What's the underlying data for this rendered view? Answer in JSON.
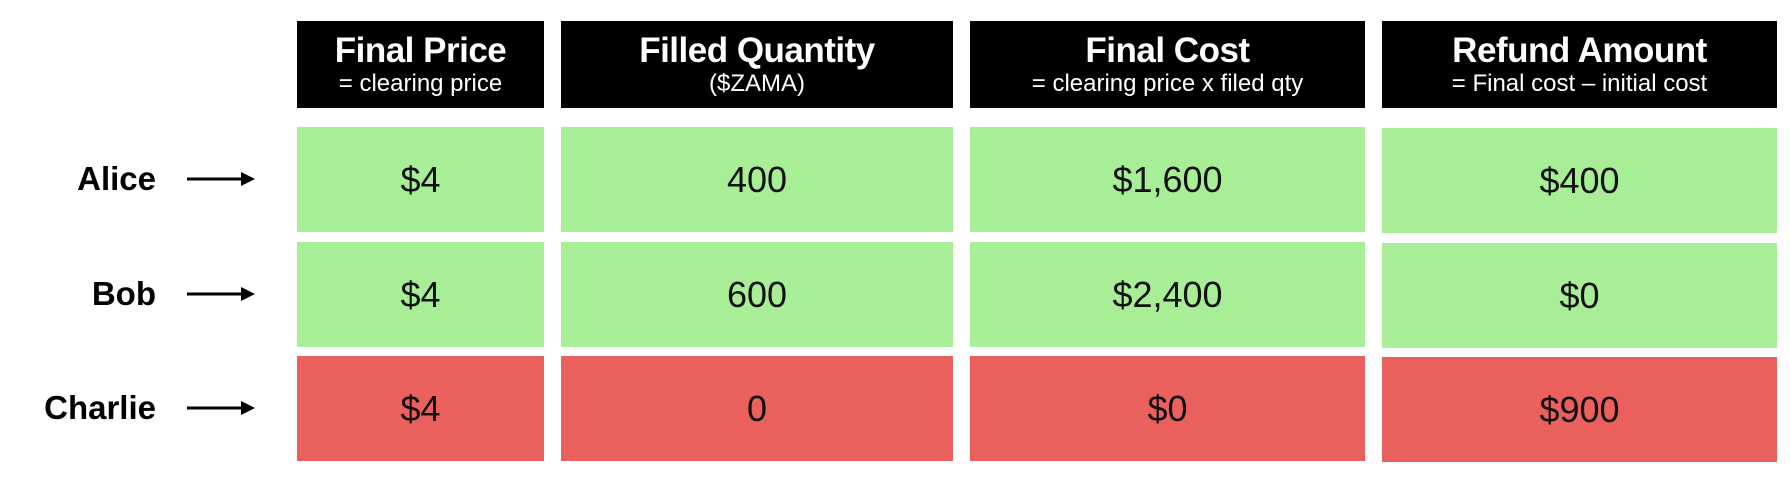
{
  "columns": [
    {
      "title": "Final Price",
      "subtitle": "= clearing price"
    },
    {
      "title": "Filled Quantity",
      "subtitle": "($ZAMA)"
    },
    {
      "title": "Final Cost",
      "subtitle": "= clearing price x filed qty"
    },
    {
      "title": "Refund Amount",
      "subtitle": "= Final cost – initial cost"
    }
  ],
  "rows": [
    {
      "name": "Alice",
      "status": "filled",
      "values": [
        "$4",
        "400",
        "$1,600",
        "$400"
      ]
    },
    {
      "name": "Bob",
      "status": "filled",
      "values": [
        "$4",
        "600",
        "$2,400",
        "$0"
      ]
    },
    {
      "name": "Charlie",
      "status": "unfilled",
      "values": [
        "$4",
        "0",
        "$0",
        "$900"
      ]
    }
  ],
  "colors": {
    "filled": "#a8ee96",
    "unfilled": "#e9605d",
    "header": "#000000"
  },
  "icons": {
    "row_pointer": "arrow-right-icon"
  }
}
